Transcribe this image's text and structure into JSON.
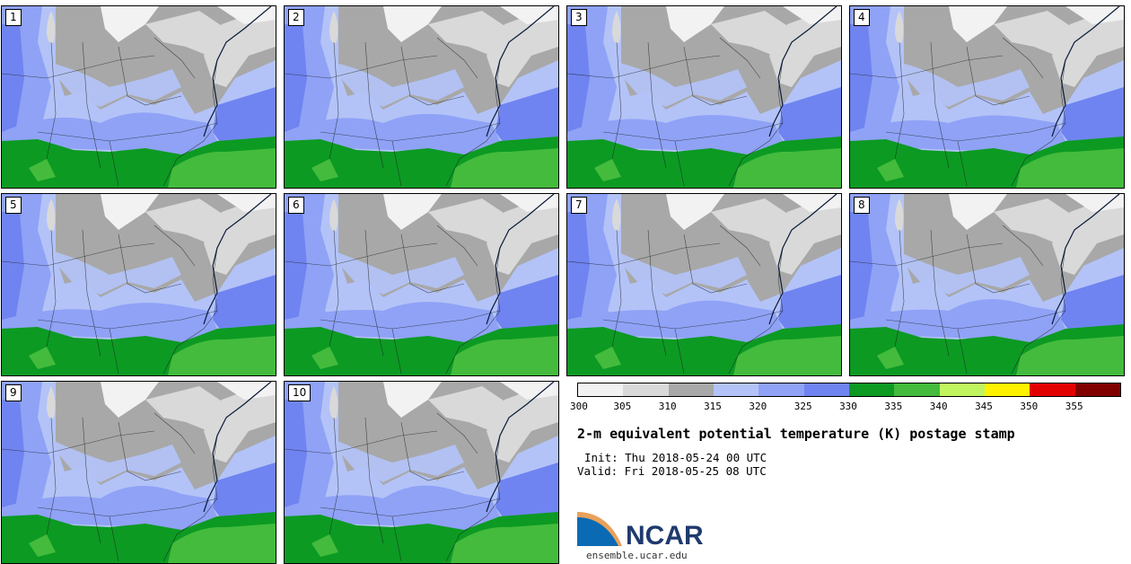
{
  "panels": [
    "1",
    "2",
    "3",
    "4",
    "5",
    "6",
    "7",
    "8",
    "9",
    "10"
  ],
  "colorbar": {
    "colors": [
      "#f2f2f2",
      "#d9d9d9",
      "#a8a8a8",
      "#b3c3f8",
      "#8fa2f6",
      "#6f84f0",
      "#0c9a23",
      "#44bb3c",
      "#c0f55f",
      "#fff200",
      "#e30000",
      "#800000"
    ],
    "ticks": [
      "300",
      "305",
      "310",
      "315",
      "320",
      "325",
      "330",
      "335",
      "340",
      "345",
      "350",
      "355"
    ]
  },
  "title": "2-m equivalent potential temperature (K) postage stamp",
  "init": "Init: Thu 2018-05-24 00 UTC",
  "valid": "Valid: Fri 2018-05-25 08 UTC",
  "logo": {
    "text": "NCAR",
    "url": "ensemble.ucar.edu",
    "brand_color": "#0a6ab3",
    "text_color": "#1f3a6e"
  }
}
